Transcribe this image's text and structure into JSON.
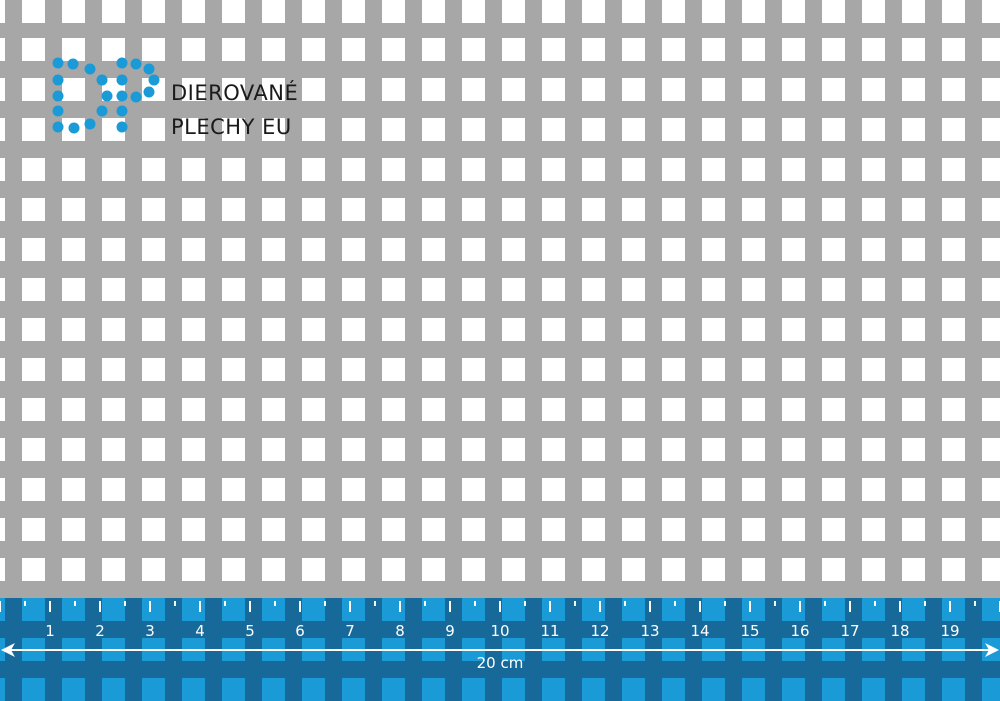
{
  "brand": {
    "line1": "DIEROVANÉ",
    "line2": "PLECHY EU",
    "color": "#1a9bd7"
  },
  "ruler": {
    "numbers": [
      "1",
      "2",
      "3",
      "4",
      "5",
      "6",
      "7",
      "8",
      "9",
      "10",
      "11",
      "12",
      "13",
      "14",
      "15",
      "16",
      "17",
      "18",
      "19"
    ],
    "length_label": "20 cm"
  },
  "colors": {
    "metal": "#a7a7a7",
    "hole": "#ffffff",
    "ruler_dark": "#17699a",
    "ruler_light": "#1a9bd7"
  }
}
